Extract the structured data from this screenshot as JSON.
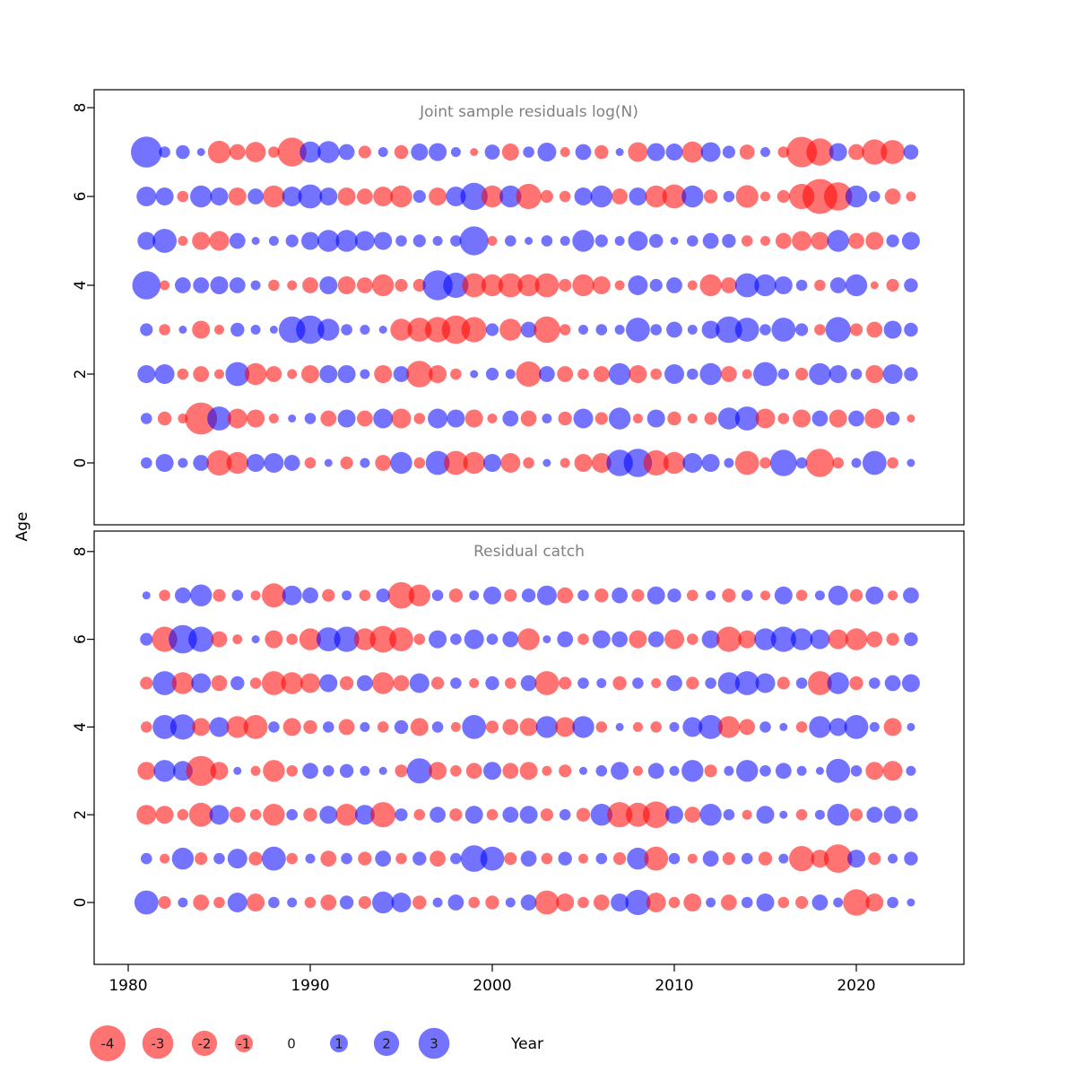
{
  "chart_data": {
    "type": "bubble",
    "description": "Stock-assessment residual bubble plot with two stacked panels. Each bubble is a residual at (year, age); red = negative residual, blue = positive residual; bubble radius proportional to sqrt(|residual|).",
    "xlabel": "Year",
    "ylabel": "Age",
    "x_ticks": [
      1980,
      1990,
      2000,
      2010,
      2020
    ],
    "y_ticks": [
      0,
      2,
      4,
      6,
      8
    ],
    "xlim": [
      1978,
      2026
    ],
    "ylim": [
      -1,
      8.5
    ],
    "grid": false,
    "ages": [
      0,
      1,
      2,
      3,
      4,
      5,
      6,
      7
    ],
    "years": [
      1981,
      1982,
      1983,
      1984,
      1985,
      1986,
      1987,
      1988,
      1989,
      1990,
      1991,
      1992,
      1993,
      1994,
      1995,
      1996,
      1997,
      1998,
      1999,
      2000,
      2001,
      2002,
      2003,
      2004,
      2005,
      2006,
      2007,
      2008,
      2009,
      2010,
      2011,
      2012,
      2013,
      2014,
      2015,
      2016,
      2017,
      2018,
      2019,
      2020,
      2021,
      2022,
      2023
    ],
    "colors": {
      "negative": "#FF0000",
      "positive": "#0000FF",
      "title": "#808080",
      "axis": "#000000",
      "opacity": 0.55
    },
    "legend": {
      "values": [
        -4,
        -3,
        -2,
        -1,
        0,
        1,
        2,
        3
      ],
      "labels": [
        "-4",
        "-3",
        "-2",
        "-1",
        "0",
        "1",
        "2",
        "3"
      ]
    },
    "panels": [
      {
        "title": "Joint sample residuals log(N)",
        "residuals": [
          [
            0.4,
            1.0,
            0.3,
            0.8,
            -2.0,
            -1.5,
            1.0,
            1.2,
            0.8,
            -0.4,
            0.2,
            -0.5,
            0.3,
            -0.8,
            1.5,
            -0.4,
            1.8,
            -1.8,
            -1.5,
            1.0,
            -1.2,
            -0.4,
            0.2,
            -0.3,
            -1.0,
            -1.2,
            2.2,
            2.5,
            -2.0,
            -1.5,
            1.2,
            1.0,
            0.3,
            -1.8,
            -0.4,
            2.2,
            0.4,
            -2.5,
            -0.4,
            0.3,
            1.8,
            -0.4,
            0.2
          ],
          [
            0.4,
            -0.6,
            -0.3,
            -3.2,
            1.8,
            -1.2,
            -1.0,
            -0.3,
            0.2,
            0.4,
            -0.8,
            1.0,
            -0.8,
            1.2,
            -1.2,
            -0.4,
            1.2,
            1.0,
            -1.0,
            -0.3,
            0.8,
            -0.8,
            0.3,
            -0.6,
            1.2,
            -0.5,
            1.5,
            -0.3,
            1.0,
            -0.6,
            -0.3,
            -0.5,
            1.5,
            1.8,
            -1.2,
            -0.4,
            -1.0,
            0.8,
            -1.0,
            0.8,
            -1.2,
            0.6,
            -0.2
          ],
          [
            1.0,
            1.2,
            -0.4,
            -0.8,
            -0.3,
            1.8,
            -1.5,
            -0.8,
            -0.3,
            -1.0,
            1.0,
            1.0,
            0.3,
            -1.0,
            0.8,
            -2.2,
            -1.0,
            -0.4,
            0.2,
            0.5,
            0.3,
            -2.0,
            0.8,
            -0.8,
            -0.4,
            -0.8,
            1.5,
            -1.0,
            -0.4,
            1.2,
            0.4,
            1.5,
            -0.8,
            -0.3,
            1.8,
            0.4,
            -0.5,
            1.5,
            1.0,
            0.4,
            -1.0,
            1.2,
            0.6
          ],
          [
            0.5,
            -0.4,
            0.2,
            -1.0,
            -0.3,
            0.6,
            0.3,
            0.2,
            2.2,
            2.5,
            1.5,
            0.4,
            0.3,
            0.2,
            -1.5,
            -1.8,
            -2.0,
            -2.5,
            -2.0,
            0.5,
            -1.5,
            0.8,
            -2.2,
            -0.4,
            0.3,
            0.4,
            0.3,
            1.8,
            0.4,
            0.8,
            0.3,
            1.0,
            2.2,
            1.8,
            0.4,
            1.8,
            0.5,
            -0.4,
            2.0,
            -0.5,
            -0.8,
            1.0,
            0.6
          ],
          [
            2.5,
            -0.3,
            0.8,
            0.8,
            1.0,
            0.8,
            0.3,
            -0.4,
            -0.3,
            -0.8,
            1.0,
            -1.0,
            -0.8,
            -1.5,
            -0.5,
            -0.5,
            2.8,
            2.0,
            -1.8,
            -1.5,
            -1.8,
            -1.5,
            -1.8,
            -0.5,
            -1.5,
            -1.0,
            -0.3,
            1.2,
            0.5,
            0.8,
            -0.3,
            -1.5,
            -0.8,
            1.8,
            1.5,
            1.0,
            0.4,
            -0.4,
            0.8,
            1.5,
            -0.2,
            -0.5,
            0.6
          ],
          [
            1.0,
            1.8,
            -0.3,
            -1.0,
            -1.2,
            0.8,
            0.2,
            0.3,
            0.5,
            1.0,
            1.5,
            1.5,
            1.2,
            1.0,
            0.4,
            0.5,
            0.3,
            0.4,
            2.6,
            -0.3,
            0.4,
            0.2,
            0.4,
            0.3,
            1.5,
            0.5,
            0.3,
            1.2,
            0.6,
            0.2,
            0.4,
            0.8,
            0.6,
            -0.4,
            -0.3,
            -0.8,
            -1.2,
            -1.0,
            1.5,
            -0.8,
            -1.0,
            0.5,
            1.0
          ],
          [
            1.2,
            1.0,
            -0.4,
            1.5,
            1.0,
            -1.0,
            0.8,
            -1.5,
            1.2,
            1.8,
            1.0,
            -1.0,
            -0.8,
            -1.2,
            -1.5,
            0.5,
            -1.0,
            1.2,
            2.3,
            -1.5,
            1.5,
            -2.0,
            -0.5,
            -0.4,
            1.0,
            1.5,
            -0.8,
            1.0,
            -1.5,
            -1.8,
            1.5,
            -0.6,
            0.4,
            -1.6,
            -0.3,
            -0.5,
            -2.0,
            -3.8,
            -2.5,
            1.5,
            0.4,
            -0.8,
            -0.3
          ],
          [
            3.0,
            0.4,
            0.6,
            0.2,
            -1.6,
            -0.8,
            -1.3,
            -0.4,
            -2.6,
            1.4,
            1.5,
            0.8,
            -0.5,
            0.3,
            -0.6,
            0.9,
            1.0,
            0.3,
            -0.2,
            0.7,
            -0.9,
            0.4,
            1.1,
            -0.3,
            0.8,
            -0.6,
            0.2,
            -1.2,
            1.0,
            0.9,
            -1.4,
            1.2,
            0.5,
            -0.7,
            0.3,
            -0.4,
            -2.9,
            -2.3,
            1.0,
            -0.8,
            -2.0,
            -1.8,
            0.7
          ]
        ]
      },
      {
        "title": "Residual catch",
        "residuals": [
          [
            1.8,
            -0.5,
            0.3,
            -0.8,
            -0.4,
            1.2,
            -1.0,
            0.4,
            0.3,
            -0.4,
            -0.8,
            0.6,
            -0.5,
            1.5,
            1.2,
            -0.6,
            0.3,
            0.8,
            -0.4,
            -0.6,
            0.3,
            0.8,
            -1.8,
            -1.0,
            -0.4,
            -0.8,
            1.0,
            2.0,
            -1.2,
            -0.4,
            -1.0,
            0.3,
            -0.8,
            0.4,
            1.0,
            -0.4,
            -0.5,
            0.8,
            0.3,
            -2.2,
            -1.0,
            0.4,
            0.2
          ],
          [
            0.4,
            -0.3,
            1.5,
            -0.5,
            0.4,
            1.2,
            -0.6,
            1.8,
            -0.4,
            0.3,
            -0.8,
            0.4,
            -0.6,
            0.8,
            -0.4,
            0.6,
            -0.8,
            0.4,
            2.2,
            1.8,
            -0.5,
            0.8,
            -0.4,
            0.6,
            -0.3,
            0.4,
            -0.5,
            1.5,
            -1.8,
            0.4,
            -0.3,
            0.8,
            -0.5,
            0.4,
            -0.6,
            0.3,
            -2.0,
            -1.0,
            -2.5,
            1.0,
            -0.5,
            0.3,
            0.6
          ],
          [
            -1.2,
            -1.0,
            -0.4,
            -1.8,
            1.2,
            -0.8,
            -0.4,
            -1.5,
            0.4,
            -0.6,
            1.0,
            -1.5,
            1.2,
            -2.0,
            0.5,
            -0.4,
            0.8,
            -0.5,
            1.0,
            -0.4,
            0.8,
            1.0,
            -0.5,
            0.4,
            -0.6,
            1.5,
            -2.0,
            -1.8,
            -2.2,
            1.0,
            -0.8,
            1.5,
            0.4,
            -0.3,
            1.0,
            0.2,
            -0.4,
            0.3,
            1.5,
            -0.5,
            0.8,
            1.0,
            0.6
          ],
          [
            -1.0,
            1.5,
            1.2,
            -2.8,
            -1.0,
            0.2,
            -0.3,
            -1.5,
            -0.4,
            0.8,
            0.4,
            0.6,
            0.3,
            0.2,
            -0.5,
            2.0,
            -1.0,
            -0.4,
            -0.8,
            1.0,
            -0.8,
            -1.0,
            -0.3,
            -0.5,
            0.2,
            0.4,
            1.0,
            -0.3,
            0.8,
            0.3,
            1.5,
            -0.5,
            0.3,
            1.5,
            0.4,
            0.8,
            0.3,
            0.2,
            1.8,
            0.4,
            -1.0,
            -1.2,
            0.3
          ],
          [
            -0.4,
            1.8,
            2.0,
            -1.0,
            1.2,
            -1.5,
            -1.8,
            0.4,
            -1.0,
            -0.6,
            0.4,
            -0.8,
            0.3,
            -0.4,
            0.6,
            -1.0,
            0.4,
            -0.3,
            1.8,
            -0.5,
            -0.8,
            -1.0,
            1.5,
            -1.2,
            1.5,
            -0.4,
            0.2,
            -0.3,
            -0.4,
            0.3,
            1.2,
            1.8,
            -1.5,
            -0.8,
            0.4,
            0.2,
            -0.4,
            1.5,
            1.0,
            1.8,
            0.3,
            -1.0,
            0.2
          ],
          [
            -0.5,
            1.8,
            -1.5,
            1.2,
            -0.8,
            0.6,
            -0.4,
            -1.8,
            -1.5,
            -1.2,
            1.0,
            -0.6,
            0.8,
            -1.5,
            -0.8,
            1.2,
            -0.5,
            0.4,
            -0.3,
            0.6,
            -0.4,
            0.8,
            -1.8,
            -0.5,
            0.4,
            0.3,
            -0.6,
            0.4,
            -0.3,
            0.8,
            -0.5,
            0.4,
            1.5,
            1.8,
            1.2,
            -0.5,
            0.4,
            -1.8,
            1.5,
            -0.6,
            0.4,
            0.8,
            1.0
          ],
          [
            0.5,
            -2.0,
            2.5,
            2.0,
            -0.8,
            -0.3,
            0.2,
            -1.0,
            -0.4,
            -1.5,
            1.8,
            2.0,
            -1.5,
            -2.2,
            -1.8,
            -0.4,
            1.0,
            0.4,
            1.2,
            0.4,
            0.8,
            -1.5,
            0.2,
            0.8,
            -0.4,
            1.0,
            0.8,
            -1.0,
            0.8,
            -1.2,
            -0.4,
            1.0,
            -2.0,
            -1.0,
            1.5,
            2.0,
            1.5,
            1.2,
            -1.2,
            -1.5,
            -0.8,
            -0.5,
            0.6
          ],
          [
            0.2,
            -0.4,
            0.8,
            1.5,
            -0.5,
            0.4,
            -0.3,
            -1.8,
            1.2,
            0.8,
            -0.5,
            0.3,
            -0.4,
            0.6,
            -2.2,
            -1.5,
            0.4,
            -0.6,
            0.3,
            1.0,
            -0.5,
            0.6,
            1.2,
            -0.8,
            0.4,
            -0.6,
            0.8,
            -0.5,
            1.0,
            0.6,
            -0.4,
            0.3,
            -0.6,
            0.4,
            -0.3,
            1.0,
            -0.4,
            0.3,
            1.2,
            -0.5,
            1.0,
            -0.3,
            0.8
          ]
        ]
      }
    ]
  }
}
